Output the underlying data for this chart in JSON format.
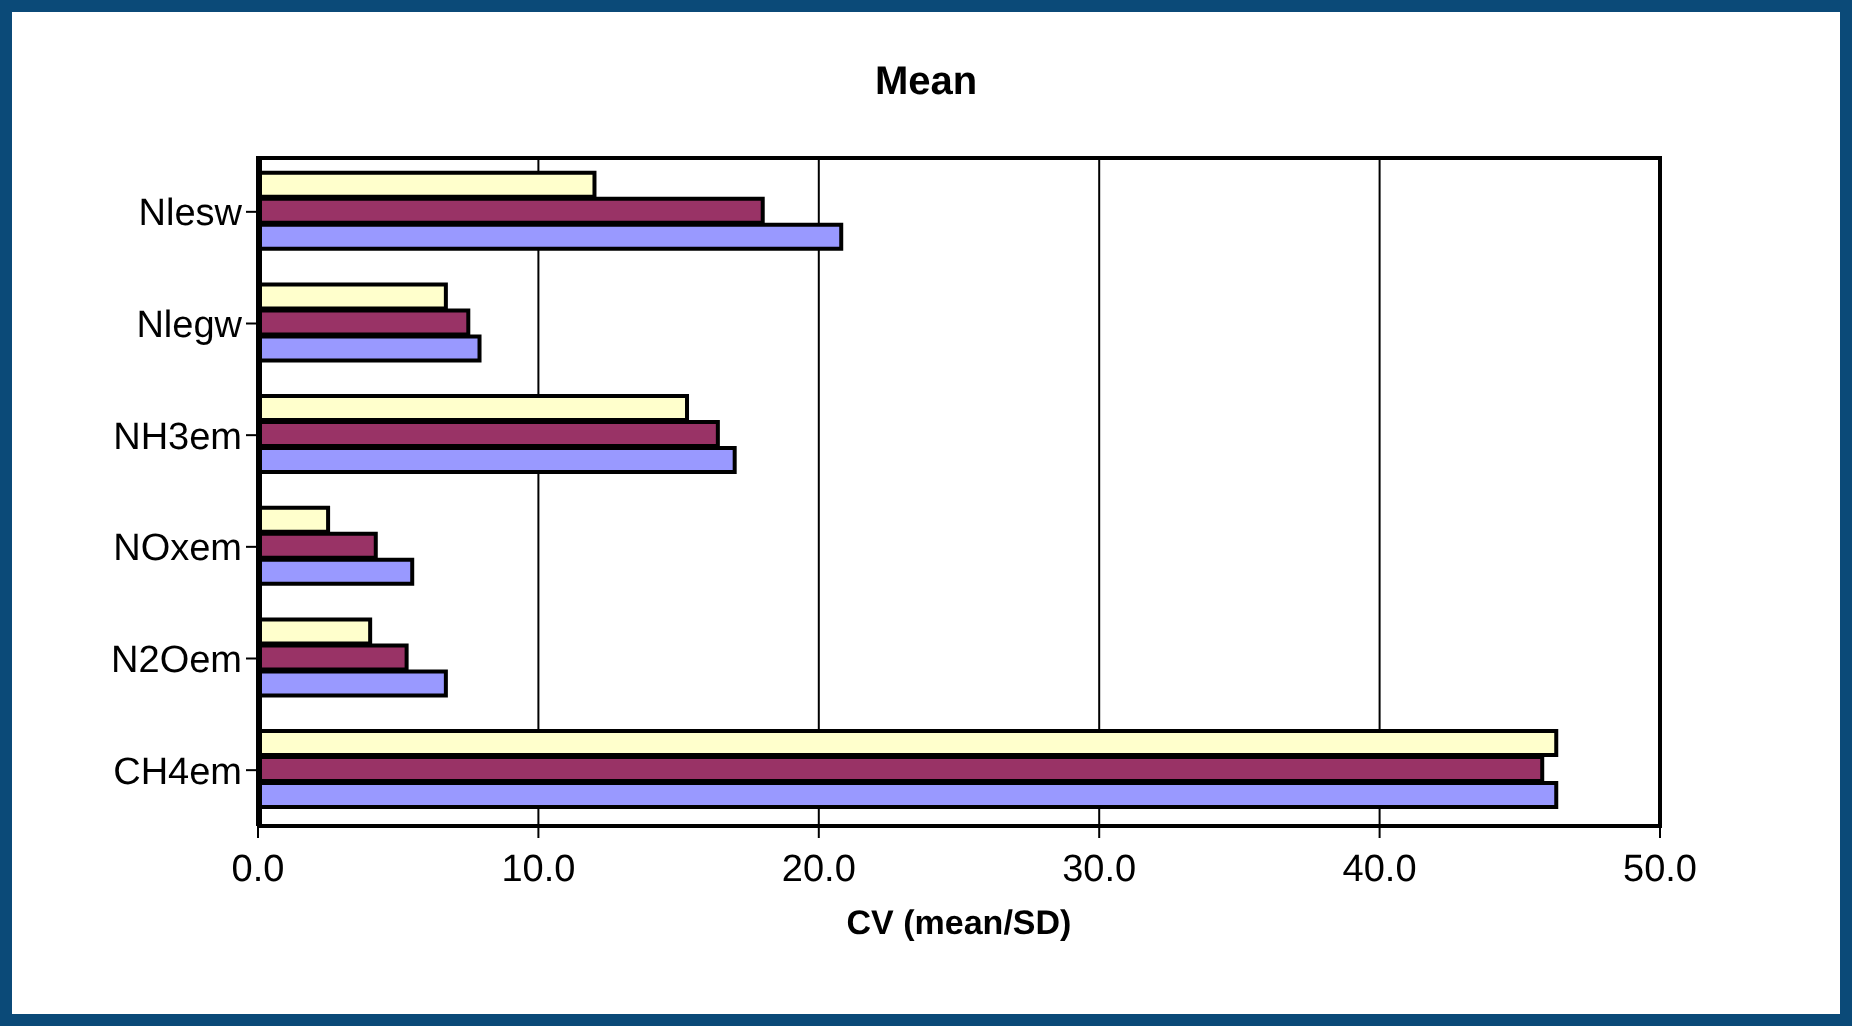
{
  "chart_data": {
    "type": "bar",
    "orientation": "horizontal",
    "title": "Mean",
    "xlabel": "CV (mean/SD)",
    "categories": [
      "Nlesw",
      "Nlegw",
      "NH3em",
      "NOxem",
      "N2Oem",
      "CH4em"
    ],
    "series": [
      {
        "color": "#ffffcc",
        "values": [
          12.0,
          6.7,
          15.3,
          2.5,
          4.0,
          46.3
        ]
      },
      {
        "color": "#993366",
        "values": [
          18.0,
          7.5,
          16.4,
          4.2,
          5.3,
          45.8
        ]
      },
      {
        "color": "#9999ff",
        "values": [
          20.8,
          7.9,
          17.0,
          5.5,
          6.7,
          46.3
        ]
      }
    ],
    "xlim": [
      0,
      50
    ],
    "xticks": [
      {
        "value": 0,
        "label": "0.0"
      },
      {
        "value": 10,
        "label": "10.0"
      },
      {
        "value": 20,
        "label": "20.0"
      },
      {
        "value": 30,
        "label": "30.0"
      },
      {
        "value": 40,
        "label": "40.0"
      },
      {
        "value": 50,
        "label": "50.0"
      }
    ],
    "grid": "x"
  }
}
